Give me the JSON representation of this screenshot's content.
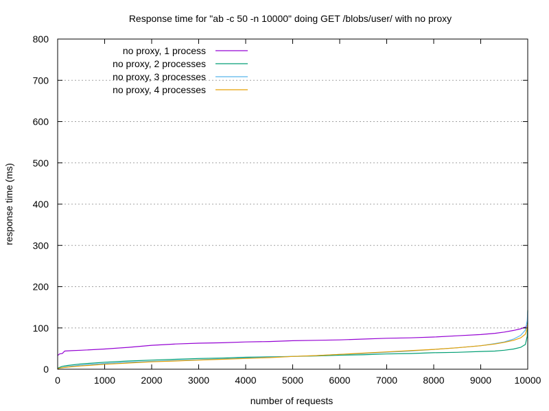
{
  "chart_data": {
    "type": "line",
    "title": "Response time for \"ab -c 50 -n 10000\" doing GET /blobs/user/ with no proxy",
    "xlabel": "number of requests",
    "ylabel": "response time (ms)",
    "xlim": [
      0,
      10000
    ],
    "ylim": [
      0,
      800
    ],
    "xticks": [
      0,
      1000,
      2000,
      3000,
      4000,
      5000,
      6000,
      7000,
      8000,
      9000,
      10000
    ],
    "yticks": [
      0,
      100,
      200,
      300,
      400,
      500,
      600,
      700,
      800
    ],
    "grid": "horizontal dotted",
    "legend_position": "top-left",
    "series": [
      {
        "name": "no proxy, 1 process",
        "color": "#9400d3",
        "points": [
          [
            0,
            33
          ],
          [
            40,
            37
          ],
          [
            100,
            38
          ],
          [
            150,
            44
          ],
          [
            300,
            45
          ],
          [
            500,
            46
          ],
          [
            1000,
            49
          ],
          [
            1500,
            53
          ],
          [
            2000,
            58
          ],
          [
            2500,
            61
          ],
          [
            3000,
            63
          ],
          [
            3500,
            64
          ],
          [
            4000,
            66
          ],
          [
            4500,
            67
          ],
          [
            5000,
            69
          ],
          [
            5500,
            70
          ],
          [
            6000,
            71
          ],
          [
            6500,
            73
          ],
          [
            7000,
            75
          ],
          [
            7500,
            76
          ],
          [
            8000,
            78
          ],
          [
            8500,
            81
          ],
          [
            9000,
            84
          ],
          [
            9300,
            87
          ],
          [
            9500,
            90
          ],
          [
            9700,
            94
          ],
          [
            9850,
            98
          ],
          [
            9950,
            102
          ],
          [
            10000,
            106
          ]
        ]
      },
      {
        "name": "no proxy, 2 processes",
        "color": "#009e73",
        "points": [
          [
            0,
            2
          ],
          [
            30,
            4
          ],
          [
            100,
            7
          ],
          [
            200,
            9
          ],
          [
            500,
            13
          ],
          [
            1000,
            17
          ],
          [
            1500,
            20
          ],
          [
            2000,
            22
          ],
          [
            2500,
            24
          ],
          [
            3000,
            26
          ],
          [
            3500,
            27
          ],
          [
            4000,
            29
          ],
          [
            4500,
            30
          ],
          [
            5000,
            31
          ],
          [
            5500,
            32
          ],
          [
            6000,
            34
          ],
          [
            6500,
            35
          ],
          [
            7000,
            37
          ],
          [
            7500,
            38
          ],
          [
            8000,
            40
          ],
          [
            8500,
            41
          ],
          [
            9000,
            43
          ],
          [
            9300,
            44
          ],
          [
            9500,
            46
          ],
          [
            9700,
            49
          ],
          [
            9850,
            53
          ],
          [
            9950,
            60
          ],
          [
            9990,
            80
          ],
          [
            10000,
            143
          ]
        ]
      },
      {
        "name": "no proxy, 3 processes",
        "color": "#56b4e9",
        "points": [
          [
            0,
            1
          ],
          [
            50,
            3
          ],
          [
            200,
            6
          ],
          [
            500,
            10
          ],
          [
            1000,
            14
          ],
          [
            1500,
            17
          ],
          [
            2000,
            19
          ],
          [
            2500,
            21
          ],
          [
            3000,
            23
          ],
          [
            3500,
            25
          ],
          [
            4000,
            27
          ],
          [
            4500,
            29
          ],
          [
            5000,
            31
          ],
          [
            5500,
            33
          ],
          [
            6000,
            36
          ],
          [
            6500,
            38
          ],
          [
            7000,
            41
          ],
          [
            7500,
            44
          ],
          [
            8000,
            48
          ],
          [
            8500,
            52
          ],
          [
            9000,
            57
          ],
          [
            9300,
            62
          ],
          [
            9500,
            66
          ],
          [
            9700,
            73
          ],
          [
            9850,
            82
          ],
          [
            9950,
            95
          ],
          [
            9990,
            118
          ],
          [
            10000,
            140
          ]
        ]
      },
      {
        "name": "no proxy, 4 processes",
        "color": "#e69f00",
        "points": [
          [
            0,
            1
          ],
          [
            50,
            3
          ],
          [
            200,
            5
          ],
          [
            500,
            8
          ],
          [
            1000,
            12
          ],
          [
            1500,
            15
          ],
          [
            2000,
            18
          ],
          [
            2500,
            20
          ],
          [
            3000,
            22
          ],
          [
            3500,
            24
          ],
          [
            4000,
            26
          ],
          [
            4500,
            28
          ],
          [
            5000,
            31
          ],
          [
            5500,
            33
          ],
          [
            6000,
            36
          ],
          [
            6500,
            39
          ],
          [
            7000,
            42
          ],
          [
            7500,
            45
          ],
          [
            8000,
            48
          ],
          [
            8500,
            52
          ],
          [
            9000,
            57
          ],
          [
            9300,
            61
          ],
          [
            9500,
            65
          ],
          [
            9700,
            70
          ],
          [
            9850,
            76
          ],
          [
            9950,
            85
          ],
          [
            9990,
            100
          ],
          [
            10000,
            112
          ]
        ]
      }
    ]
  }
}
